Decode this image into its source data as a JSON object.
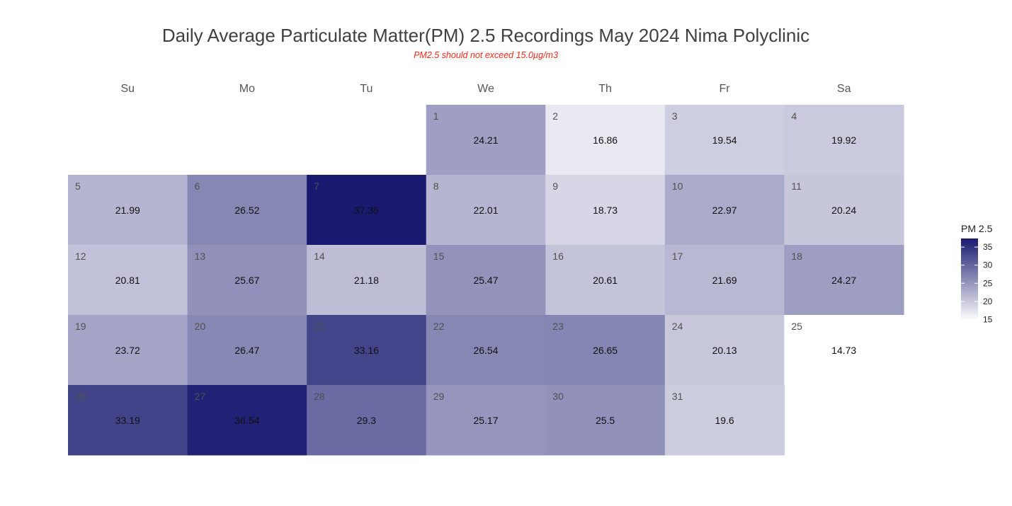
{
  "chart_data": {
    "type": "heatmap",
    "title": "Daily Average Particulate Matter(PM) 2.5 Recordings May 2024 Nima Polyclinic",
    "subtitle": "PM2.5 should not exceed 15.0µg/m3",
    "weekdays": [
      "Su",
      "Mo",
      "Tu",
      "We",
      "Th",
      "Fr",
      "Sa"
    ],
    "first_weekday_index": 3,
    "days": [
      1,
      2,
      3,
      4,
      5,
      6,
      7,
      8,
      9,
      10,
      11,
      12,
      13,
      14,
      15,
      16,
      17,
      18,
      19,
      20,
      21,
      22,
      23,
      24,
      25,
      26,
      27,
      28,
      29,
      30,
      31
    ],
    "values": [
      "24.21",
      "16.86",
      "19.54",
      "19.92",
      "21.99",
      "26.52",
      "37.35",
      "22.01",
      "18.73",
      "22.97",
      "20.24",
      "20.81",
      "25.67",
      "21.18",
      "25.47",
      "20.61",
      "21.69",
      "24.27",
      "23.72",
      "26.47",
      "33.16",
      "26.54",
      "26.65",
      "20.13",
      "14.73",
      "33.19",
      "36.54",
      "29.3",
      "25.17",
      "25.5",
      "19.6"
    ],
    "legend": {
      "title": "PM 2.5",
      "ticks": [
        "15",
        "20",
        "25",
        "30",
        "35"
      ],
      "range": [
        14.73,
        37.35
      ],
      "position": "right"
    },
    "color_low": "#ffffff",
    "color_high": "#191970",
    "grid": false
  }
}
